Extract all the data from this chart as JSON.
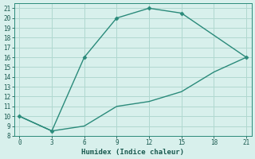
{
  "line1_x": [
    0,
    3,
    6,
    9,
    12,
    15,
    21
  ],
  "line1_y": [
    10,
    8.5,
    16,
    20,
    21,
    20.5,
    16
  ],
  "line2_x": [
    0,
    3,
    6,
    9,
    12,
    15,
    18,
    21
  ],
  "line2_y": [
    10,
    8.5,
    9,
    11,
    11.5,
    12.5,
    14.5,
    16
  ],
  "line_color": "#2a8a7a",
  "bg_color": "#d8f0ec",
  "grid_color": "#b0d8d0",
  "xlabel": "Humidex (Indice chaleur)",
  "xlim": [
    -0.5,
    21.5
  ],
  "ylim": [
    8,
    21.5
  ],
  "xticks": [
    0,
    3,
    6,
    9,
    12,
    15,
    18,
    21
  ],
  "yticks": [
    8,
    9,
    10,
    11,
    12,
    13,
    14,
    15,
    16,
    17,
    18,
    19,
    20,
    21
  ]
}
